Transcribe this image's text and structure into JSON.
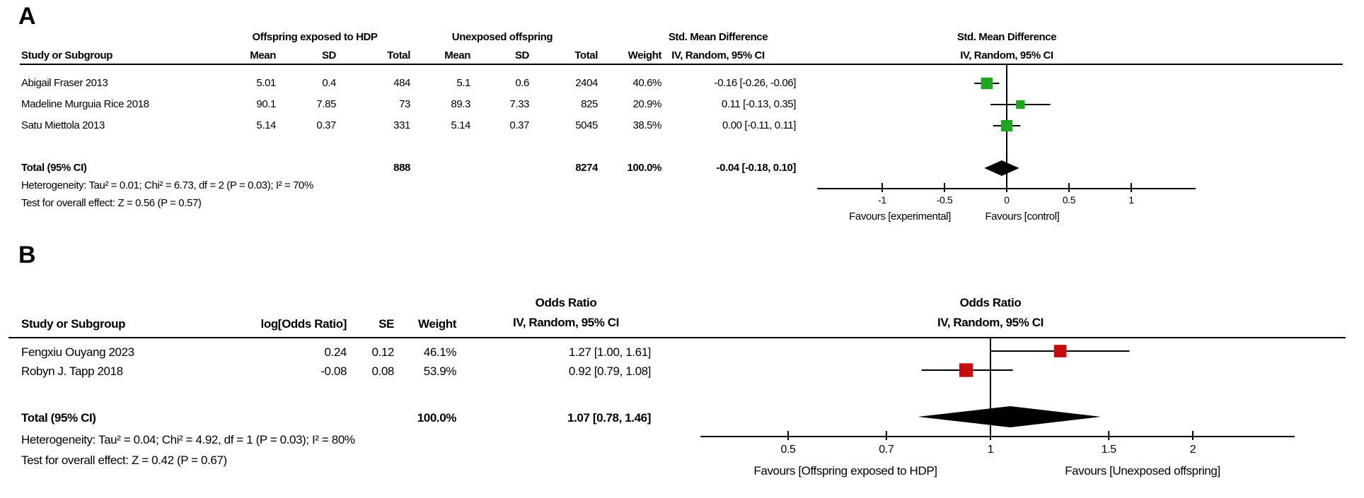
{
  "figure": {
    "panels": [
      {
        "label": "A",
        "group1_header": "Offspring exposed to HDP",
        "group2_header": "Unexposed offspring",
        "effect_header": "Std. Mean Difference",
        "method_header": "IV, Random, 95% CI",
        "col_study": "Study or Subgroup",
        "col_mean": "Mean",
        "col_sd": "SD",
        "col_total": "Total",
        "col_weight": "Weight",
        "studies": [
          {
            "name": "Abigail Fraser 2013",
            "mean1": "5.01",
            "sd1": "0.4",
            "total1": "484",
            "mean2": "5.1",
            "sd2": "0.6",
            "total2": "2404",
            "weight": "40.6%",
            "ci_text": "-0.16 [-0.26, -0.06]"
          },
          {
            "name": "Madeline Murguia Rice 2018",
            "mean1": "90.1",
            "sd1": "7.85",
            "total1": "73",
            "mean2": "89.3",
            "sd2": "7.33",
            "total2": "825",
            "weight": "20.9%",
            "ci_text": "0.11 [-0.13, 0.35]"
          },
          {
            "name": "Satu Miettola 2013",
            "mean1": "5.14",
            "sd1": "0.37",
            "total1": "331",
            "mean2": "5.14",
            "sd2": "0.37",
            "total2": "5045",
            "weight": "38.5%",
            "ci_text": "0.00 [-0.11, 0.11]"
          }
        ],
        "total_row": {
          "label": "Total (95% CI)",
          "total1": "888",
          "total2": "8274",
          "weight": "100.0%",
          "ci_text": "-0.04 [-0.18, 0.10]"
        },
        "heterogeneity": "Heterogeneity: Tau² = 0.01; Chi² = 6.73, df = 2 (P = 0.03); I² = 70%",
        "overall_test": "Test for overall effect: Z = 0.56 (P = 0.57)",
        "ticks": [
          "-1",
          "-0.5",
          "0",
          "0.5",
          "1"
        ],
        "favours_left": "Favours [experimental]",
        "favours_right": "Favours [control]"
      },
      {
        "label": "B",
        "effect_header": "Odds Ratio",
        "method_header": "IV, Random, 95% CI",
        "col_study": "Study or Subgroup",
        "col_logor": "log[Odds Ratio]",
        "col_se": "SE",
        "col_weight": "Weight",
        "studies": [
          {
            "name": "Fengxiu Ouyang 2023",
            "log_or": "0.24",
            "se": "0.12",
            "weight": "46.1%",
            "ci_text": "1.27 [1.00, 1.61]"
          },
          {
            "name": "Robyn J. Tapp 2018",
            "log_or": "-0.08",
            "se": "0.08",
            "weight": "53.9%",
            "ci_text": "0.92 [0.79, 1.08]"
          }
        ],
        "total_row": {
          "label": "Total (95% CI)",
          "weight": "100.0%",
          "ci_text": "1.07 [0.78, 1.46]"
        },
        "heterogeneity": "Heterogeneity: Tau² = 0.04; Chi² = 4.92, df = 1 (P = 0.03); I² = 80%",
        "overall_test": "Test for overall effect: Z = 0.42 (P = 0.67)",
        "ticks": [
          "0.5",
          "0.7",
          "1",
          "1.5",
          "2"
        ],
        "favours_left": "Favours [Offspring exposed to HDP]",
        "favours_right": "Favours [Unexposed offspring]"
      }
    ]
  },
  "chart_data": [
    {
      "type": "scatter",
      "subtype": "forest_plot",
      "panel": "A",
      "title": "Std. Mean Difference",
      "method": "IV, Random, 95% CI",
      "x_scale": "linear",
      "xlim": [
        -1.5,
        1.5
      ],
      "ticks": [
        -1,
        -0.5,
        0,
        0.5,
        1
      ],
      "studies": [
        {
          "name": "Abigail Fraser 2013",
          "effect": -0.16,
          "ci_low": -0.26,
          "ci_high": -0.06,
          "weight_pct": 40.6
        },
        {
          "name": "Madeline Murguia Rice 2018",
          "effect": 0.11,
          "ci_low": -0.13,
          "ci_high": 0.35,
          "weight_pct": 20.9
        },
        {
          "name": "Satu Miettola 2013",
          "effect": 0.0,
          "ci_low": -0.11,
          "ci_high": 0.11,
          "weight_pct": 38.5
        }
      ],
      "total": {
        "effect": -0.04,
        "ci_low": -0.18,
        "ci_high": 0.1,
        "weight_pct": 100.0
      },
      "favours_left": "Favours [experimental]",
      "favours_right": "Favours [control]",
      "marker_color": "#1FA51F",
      "line_color": "#000000"
    },
    {
      "type": "scatter",
      "subtype": "forest_plot",
      "panel": "B",
      "title": "Odds Ratio",
      "method": "IV, Random, 95% CI",
      "x_scale": "log",
      "xlim": [
        0.37,
        2.85
      ],
      "ticks": [
        0.5,
        0.7,
        1,
        1.5,
        2
      ],
      "studies": [
        {
          "name": "Fengxiu Ouyang 2023",
          "effect": 1.27,
          "ci_low": 1.0,
          "ci_high": 1.61,
          "weight_pct": 46.1
        },
        {
          "name": "Robyn J. Tapp 2018",
          "effect": 0.92,
          "ci_low": 0.79,
          "ci_high": 1.08,
          "weight_pct": 53.9
        }
      ],
      "total": {
        "effect": 1.07,
        "ci_low": 0.78,
        "ci_high": 1.46,
        "weight_pct": 100.0
      },
      "favours_left": "Favours [Offspring exposed to HDP]",
      "favours_right": "Favours [Unexposed offspring]",
      "marker_color": "#C60C0C",
      "line_color": "#000000"
    }
  ]
}
